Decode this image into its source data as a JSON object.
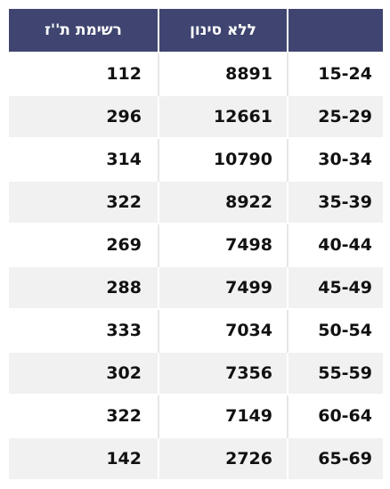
{
  "table": {
    "headers": [
      "רשימת ת''ז",
      "ללא סינון",
      ""
    ],
    "rows": [
      [
        "112",
        "8891",
        "15-24"
      ],
      [
        "296",
        "12661",
        "25-29"
      ],
      [
        "314",
        "10790",
        "30-34"
      ],
      [
        "322",
        "8922",
        "35-39"
      ],
      [
        "269",
        "7498",
        "40-44"
      ],
      [
        "288",
        "7499",
        "45-49"
      ],
      [
        "333",
        "7034",
        "50-54"
      ],
      [
        "302",
        "7356",
        "55-59"
      ],
      [
        "322",
        "7149",
        "60-64"
      ],
      [
        "142",
        "2726",
        "65-69"
      ]
    ]
  }
}
